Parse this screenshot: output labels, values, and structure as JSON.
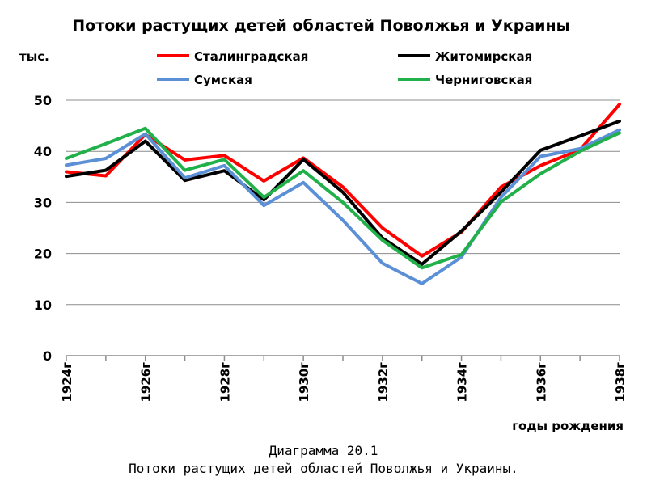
{
  "chart_data": {
    "type": "line",
    "title": "Потоки растущих детей областей Поволжья и Украины",
    "ylabel": "тыс.",
    "xlabel": "годы рождения",
    "ylim": [
      0,
      50
    ],
    "yticks": [
      0,
      10,
      20,
      30,
      40,
      50
    ],
    "x": [
      1924,
      1925,
      1926,
      1927,
      1928,
      1929,
      1930,
      1931,
      1932,
      1933,
      1934,
      1935,
      1936,
      1937,
      1938
    ],
    "xtick_labels": [
      "1924г",
      "1926г",
      "1928г",
      "1930г",
      "1932г",
      "1934г",
      "1936г",
      "1938г"
    ],
    "grid": true,
    "legend_position": "top",
    "series": [
      {
        "name": "Сталинградская",
        "color": "#ff0000",
        "values": [
          36.0,
          35.2,
          43.3,
          38.3,
          39.2,
          34.2,
          38.7,
          33.0,
          25.0,
          19.5,
          24.2,
          33.0,
          37.2,
          40.3,
          49.2
        ]
      },
      {
        "name": "Житомирская",
        "color": "#000000",
        "values": [
          35.1,
          36.3,
          42.0,
          34.3,
          36.2,
          30.5,
          38.4,
          32.0,
          23.0,
          17.9,
          24.4,
          32.0,
          40.2,
          43.0,
          45.9
        ]
      },
      {
        "name": "Сумская",
        "color": "#5b8fd6",
        "values": [
          37.3,
          38.6,
          43.4,
          34.8,
          37.2,
          29.4,
          33.9,
          26.5,
          18.1,
          14.1,
          19.3,
          31.0,
          39.0,
          40.5,
          44.2
        ]
      },
      {
        "name": "Черниговская",
        "color": "#22b04b",
        "values": [
          38.6,
          41.5,
          44.5,
          36.3,
          38.4,
          31.0,
          36.2,
          30.0,
          22.6,
          17.2,
          19.8,
          30.1,
          35.6,
          40.0,
          43.6
        ]
      }
    ]
  },
  "caption": {
    "line1": "Диаграмма 20.1",
    "line2": "Потоки растущих детей областей Поволжья и Украины."
  }
}
